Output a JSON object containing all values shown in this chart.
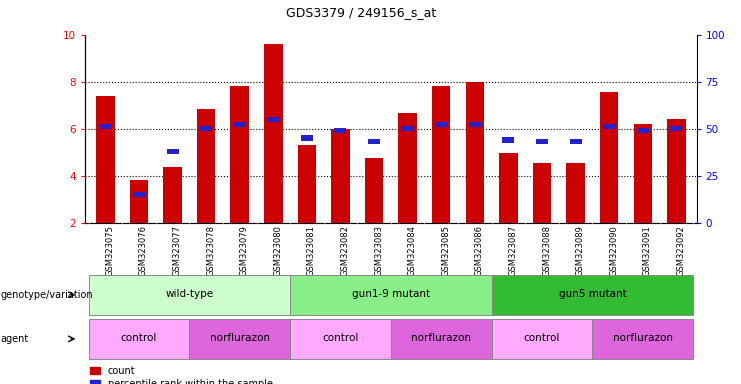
{
  "title": "GDS3379 / 249156_s_at",
  "samples": [
    "GSM323075",
    "GSM323076",
    "GSM323077",
    "GSM323078",
    "GSM323079",
    "GSM323080",
    "GSM323081",
    "GSM323082",
    "GSM323083",
    "GSM323084",
    "GSM323085",
    "GSM323086",
    "GSM323087",
    "GSM323088",
    "GSM323089",
    "GSM323090",
    "GSM323091",
    "GSM323092"
  ],
  "count_values": [
    7.4,
    3.8,
    4.35,
    6.85,
    7.8,
    9.6,
    5.3,
    6.0,
    4.75,
    6.65,
    7.8,
    8.0,
    4.95,
    4.55,
    4.55,
    7.55,
    6.2,
    6.4
  ],
  "percentile_values": [
    51,
    15,
    38,
    50,
    52,
    55,
    45,
    49,
    43,
    50,
    52,
    52,
    44,
    43,
    43,
    51,
    49,
    50
  ],
  "ymin": 2,
  "ymax": 10,
  "yticks_left": [
    2,
    4,
    6,
    8,
    10
  ],
  "yticks_right": [
    0,
    25,
    50,
    75,
    100
  ],
  "bar_color": "#cc0000",
  "percentile_color": "#2222cc",
  "bar_width": 0.55,
  "genotype_groups": [
    {
      "label": "wild-type",
      "start": 0,
      "end": 5,
      "color": "#ccffcc"
    },
    {
      "label": "gun1-9 mutant",
      "start": 6,
      "end": 11,
      "color": "#88ee88"
    },
    {
      "label": "gun5 mutant",
      "start": 12,
      "end": 17,
      "color": "#33bb33"
    }
  ],
  "agent_groups": [
    {
      "label": "control",
      "start": 0,
      "end": 2,
      "color": "#ffaaff"
    },
    {
      "label": "norflurazon",
      "start": 3,
      "end": 5,
      "color": "#dd66dd"
    },
    {
      "label": "control",
      "start": 6,
      "end": 8,
      "color": "#ffaaff"
    },
    {
      "label": "norflurazon",
      "start": 9,
      "end": 11,
      "color": "#dd66dd"
    },
    {
      "label": "control",
      "start": 12,
      "end": 14,
      "color": "#ffaaff"
    },
    {
      "label": "norflurazon",
      "start": 15,
      "end": 17,
      "color": "#dd66dd"
    }
  ],
  "legend_count": "count",
  "legend_percentile": "percentile rank within the sample",
  "genotype_label": "genotype/variation",
  "agent_label": "agent",
  "grid_values": [
    4,
    6,
    8
  ],
  "tick_bg_color": "#dddddd"
}
